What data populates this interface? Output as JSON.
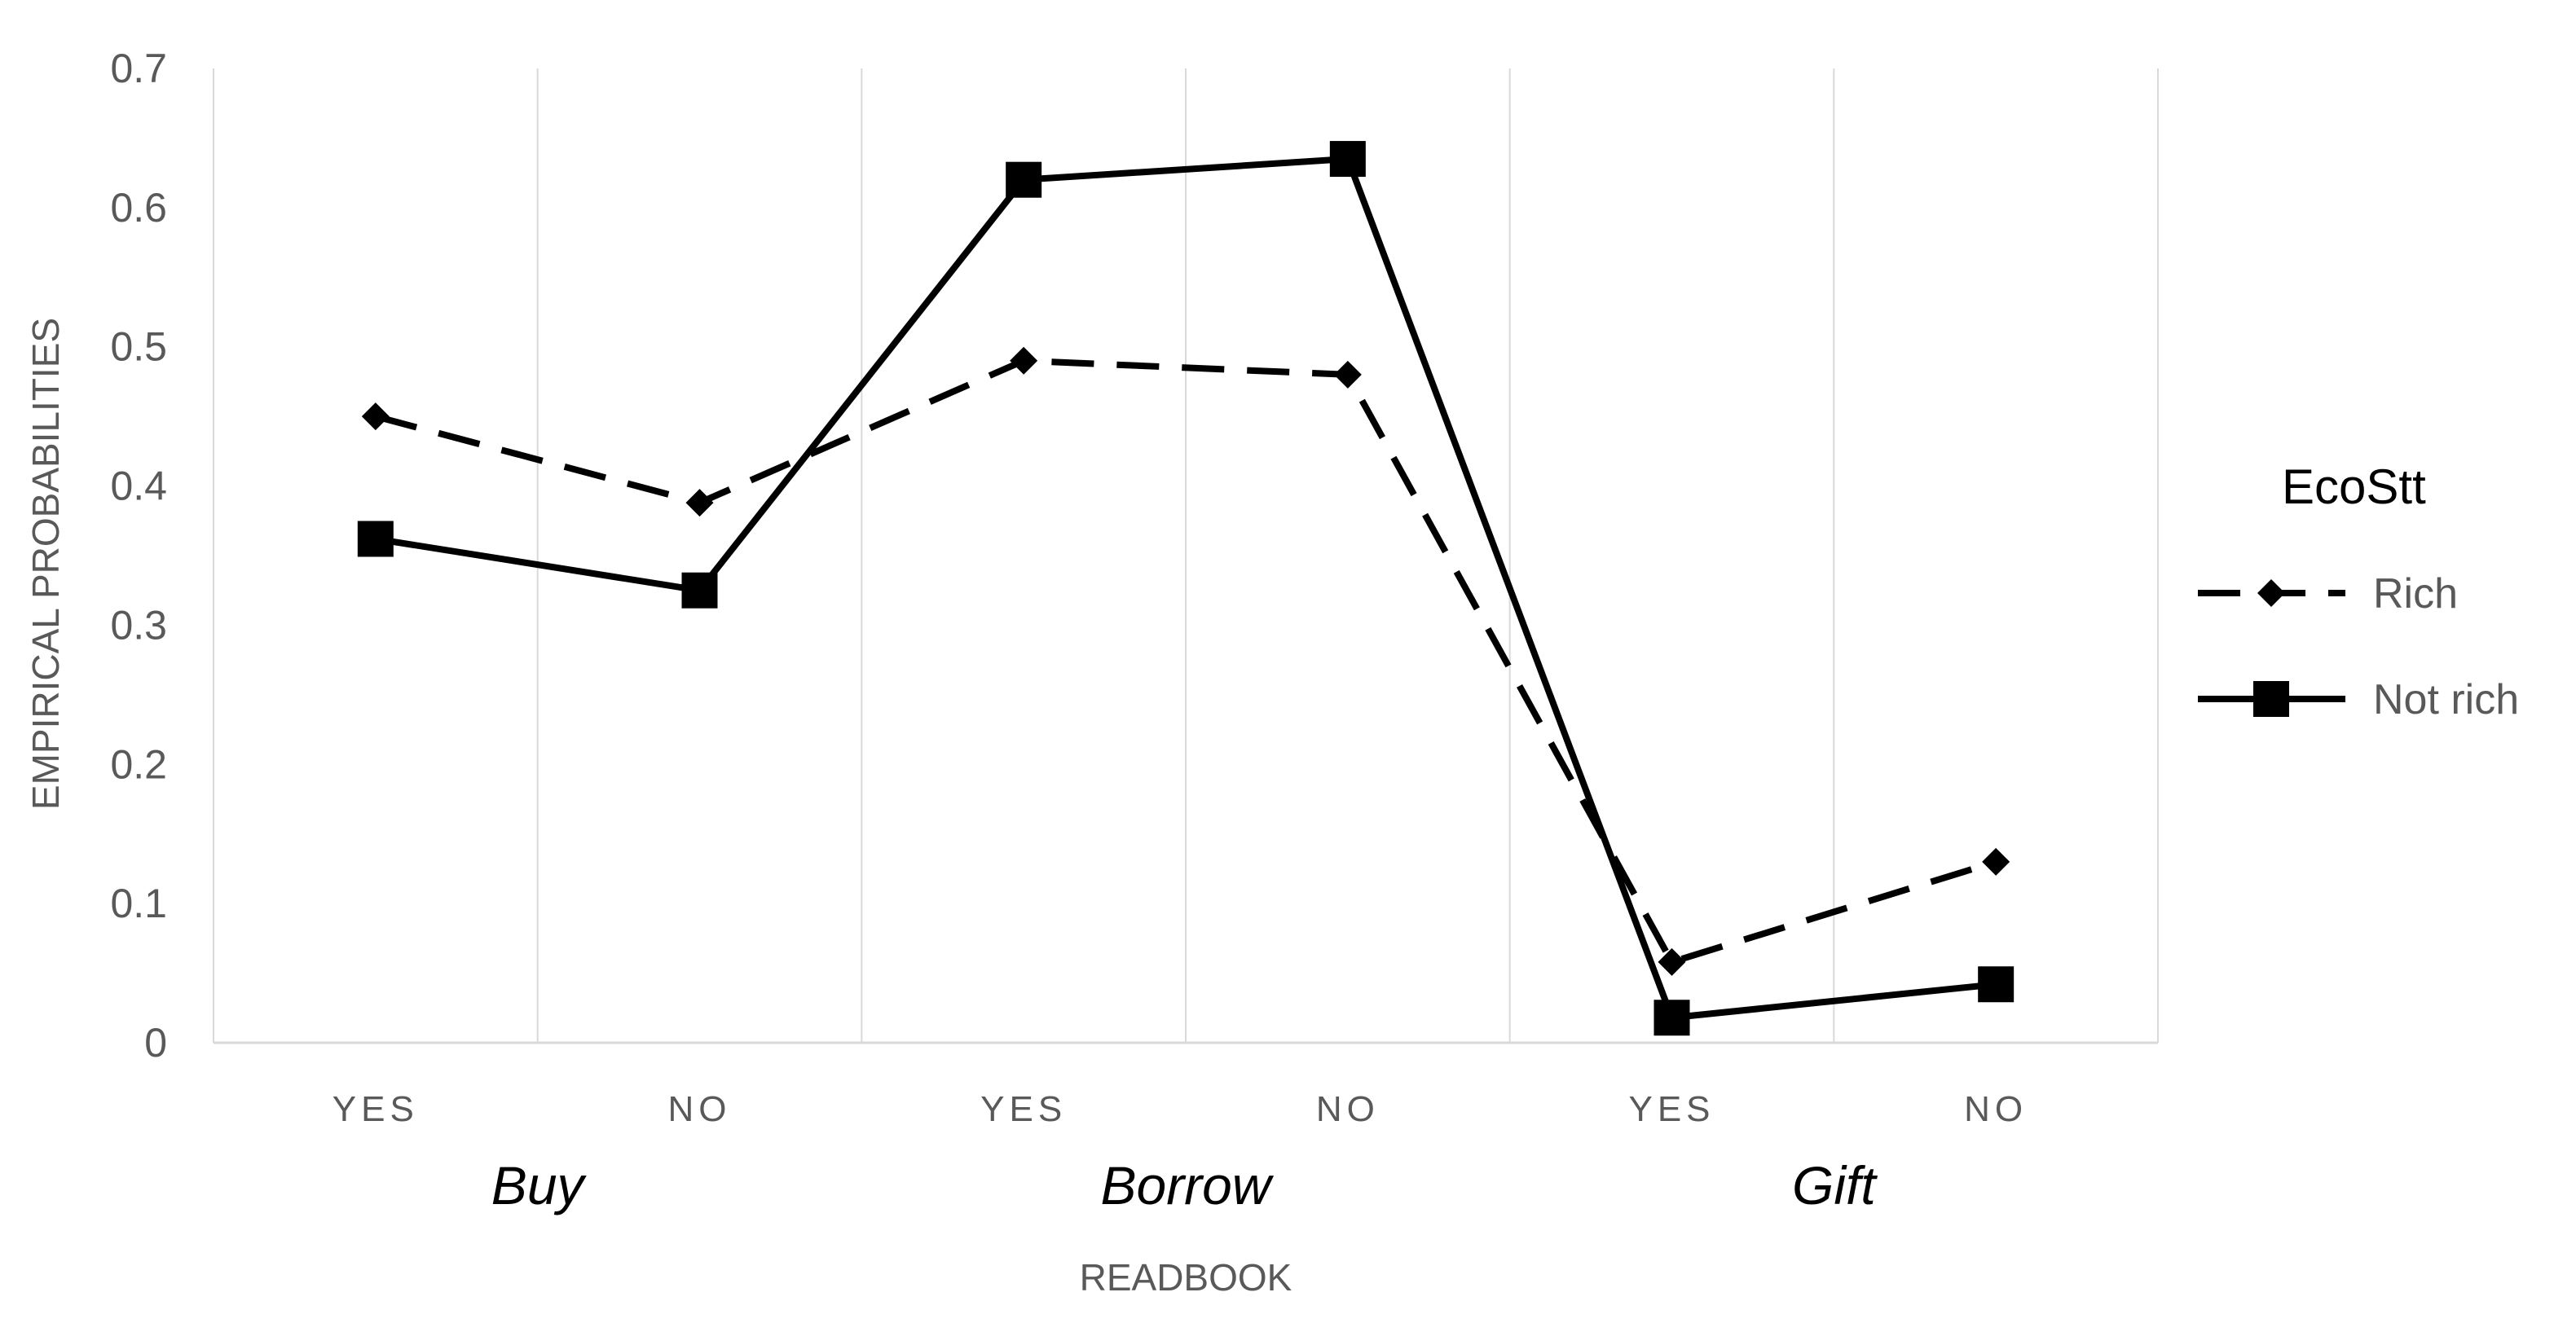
{
  "chart_data": {
    "type": "line",
    "x_ticks": [
      "YES",
      "NO",
      "YES",
      "NO",
      "YES",
      "NO"
    ],
    "groups": [
      "Buy",
      "Borrow",
      "Gift"
    ],
    "xlabel": "READBOOK",
    "ylabel": "EMPIRICAL PROBABILITIES",
    "ylim": [
      0,
      0.7
    ],
    "y_ticks": [
      "0",
      "0.1",
      "0.2",
      "0.3",
      "0.4",
      "0.5",
      "0.6",
      "0.7"
    ],
    "grid": "vertical",
    "legend": {
      "title": "EcoStt",
      "placement": "right",
      "entries": [
        "Rich",
        "Not rich"
      ]
    },
    "series": [
      {
        "name": "Rich",
        "values": [
          0.45,
          0.388,
          0.49,
          0.48,
          0.058,
          0.13
        ],
        "line_style": "dashed",
        "marker": "diamond",
        "color": "#000000"
      },
      {
        "name": "Not rich",
        "values": [
          0.362,
          0.325,
          0.62,
          0.635,
          0.018,
          0.042
        ],
        "line_style": "solid",
        "marker": "square",
        "color": "#000000"
      }
    ]
  }
}
